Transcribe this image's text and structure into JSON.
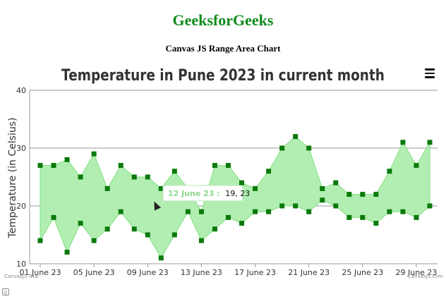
{
  "header": {
    "site_title": "GeeksforGeeks",
    "page_subtitle": "Canvas JS Range Area Chart"
  },
  "watermarks": {
    "left": "CanvasJS Trial",
    "right": "CanvasJS.com"
  },
  "colors": {
    "fill": "#b2eeb2",
    "stroke": "#7fdf7f",
    "marker": "#0a7a0a",
    "grid": "#9a9a9a",
    "brand": "#0f8a1d"
  },
  "icons": {
    "menu": "hamburger-menu-icon",
    "cursor": "mouse-pointer-icon",
    "trial": "copyright-icon"
  },
  "tooltip": {
    "label": "12 June 23 :",
    "value": "19,  23"
  },
  "chart_data": {
    "type": "rangeArea",
    "title": "Temperature in Pune 2023 in current month",
    "ylabel": "Temperature (in Celsius)",
    "xlabel": "",
    "ylim": [
      10,
      40
    ],
    "yticks": [
      10,
      20,
      30,
      40
    ],
    "grid": true,
    "x": [
      "01 June 23",
      "02 June 23",
      "03 June 23",
      "04 June 23",
      "05 June 23",
      "06 June 23",
      "07 June 23",
      "08 June 23",
      "09 June 23",
      "10 June 23",
      "11 June 23",
      "12 June 23",
      "13 June 23",
      "14 June 23",
      "15 June 23",
      "16 June 23",
      "17 June 23",
      "18 June 23",
      "19 June 23",
      "20 June 23",
      "21 June 23",
      "22 June 23",
      "23 June 23",
      "24 June 23",
      "25 June 23",
      "26 June 23",
      "27 June 23",
      "28 June 23",
      "29 June 23",
      "30 June 23"
    ],
    "xtick_labels": [
      "01 June 23",
      "05 June 23",
      "09 June 23",
      "13 June 23",
      "17 June 23",
      "21 June 23",
      "25 June 23",
      "29 June 23"
    ],
    "low": [
      14,
      18,
      12,
      17,
      14,
      16,
      19,
      16,
      15,
      11,
      15,
      19,
      14,
      16,
      18,
      17,
      19,
      19,
      20,
      20,
      19,
      21,
      20,
      18,
      18,
      17,
      19,
      19,
      18,
      20
    ],
    "high": [
      27,
      27,
      28,
      25,
      29,
      23,
      27,
      25,
      25,
      23,
      26,
      23,
      19,
      27,
      27,
      24,
      23,
      26,
      30,
      32,
      30,
      23,
      24,
      22,
      22,
      22,
      26,
      31,
      27,
      31
    ]
  }
}
